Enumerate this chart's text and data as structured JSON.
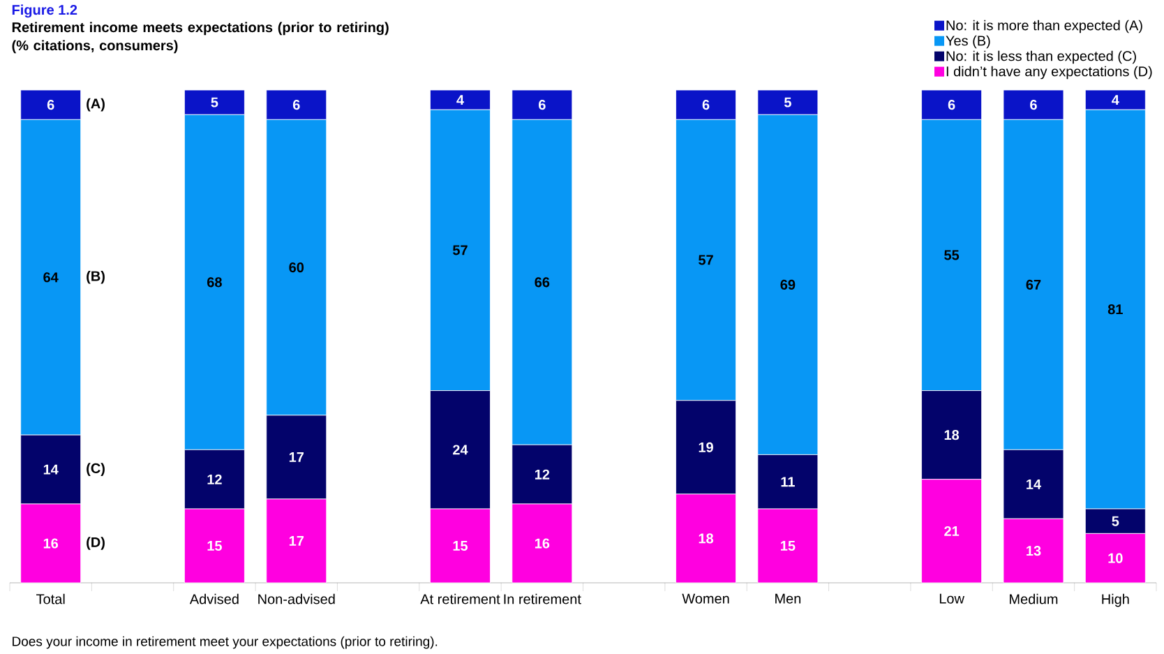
{
  "chart_data": {
    "type": "bar",
    "stacked": true,
    "title": "Figure 1.2",
    "subtitle": "Retirement income meets expectations (prior to retiring) (% citations, consumers)",
    "categories": [
      "Total",
      null,
      "Advised",
      "Non-advised",
      null,
      "At retirement",
      "In retirement",
      null,
      "Women",
      "Men",
      null,
      "Low",
      "Medium",
      "High"
    ],
    "series": [
      {
        "name": "I didn’t have any expectations (D)",
        "color": "#ff00e0",
        "values": [
          16,
          null,
          15,
          17,
          null,
          15,
          16,
          null,
          18,
          15,
          null,
          21,
          13,
          10
        ]
      },
      {
        "name": "No: it is less than expected (C)",
        "color": "#03036b",
        "values": [
          14,
          null,
          12,
          17,
          null,
          24,
          12,
          null,
          19,
          11,
          null,
          18,
          14,
          5
        ]
      },
      {
        "name": "Yes (B)",
        "color": "#0897f5",
        "values": [
          64,
          null,
          68,
          60,
          null,
          57,
          66,
          null,
          57,
          69,
          null,
          55,
          67,
          81
        ]
      },
      {
        "name": "No: it is more than expected (A)",
        "color": "#0a14c8",
        "values": [
          6,
          null,
          5,
          6,
          null,
          4,
          6,
          null,
          6,
          5,
          null,
          6,
          6,
          4
        ]
      }
    ],
    "data_labels": true,
    "legend": "top right",
    "annotations": [
      "(A)",
      "(B)",
      "(C)",
      "(D)",
      "Does your income in retirement meet your expectations (prior to retiring)."
    ]
  }
}
